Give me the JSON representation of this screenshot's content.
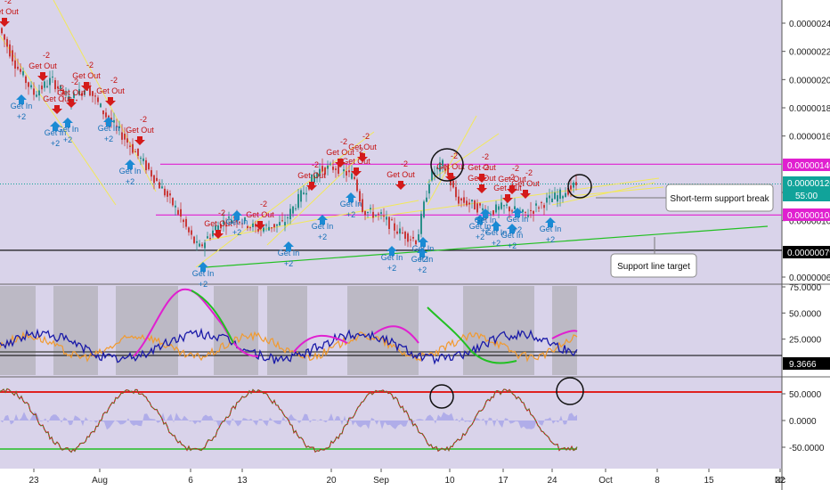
{
  "chart_data": [
    {
      "type": "candlestick",
      "panel": "price",
      "ylim": [
        5.8e-07,
        2.52e-06
      ],
      "y_ticks": [
        "0.00000240",
        "0.00000220",
        "0.00000200",
        "0.00000180",
        "0.00000160",
        "0.00000120",
        "0.00000100",
        "0.00000060"
      ],
      "levels": [
        {
          "value": 1.4e-06,
          "label": "0.00000140",
          "color": "#e020d0"
        },
        {
          "value": 1.26e-06,
          "label": "0.00000126",
          "color": "#11a39a"
        },
        {
          "value": 1.04e-06,
          "label": "0.00000104",
          "color": "#e020d0"
        },
        {
          "value": 7.9e-07,
          "label": "0.00000079",
          "color": "#000000"
        }
      ],
      "countdown_label": "55:00",
      "signals": {
        "get_out": "Get Out",
        "get_in": "Get In",
        "minus": "-2",
        "plus": "+2"
      },
      "annotations": [
        "Short-term support break",
        "Support line target"
      ]
    },
    {
      "type": "line",
      "panel": "oscillator-1",
      "y_ticks": [
        "75.0000",
        "50.0000",
        "25.0000"
      ],
      "level_label": "9.3666",
      "level_value": 9.3666
    },
    {
      "type": "line",
      "panel": "oscillator-2",
      "y_ticks": [
        "50.0000",
        "0.0000",
        "-50.0000"
      ]
    }
  ],
  "x_axis": {
    "labels": [
      "23",
      "Aug",
      "6",
      "13",
      "20",
      "Sep",
      "10",
      "17",
      "24",
      "Oct",
      "8",
      "15",
      "22",
      "Nc"
    ]
  },
  "colors": {
    "background": "#d9d3ea",
    "up": "#2a8f8a",
    "down": "#c93a3a",
    "magenta": "#e020d0",
    "yellow": "#f2e85a",
    "green": "#22c022",
    "blue": "#1a1aa8",
    "orange": "#f29a2e"
  }
}
